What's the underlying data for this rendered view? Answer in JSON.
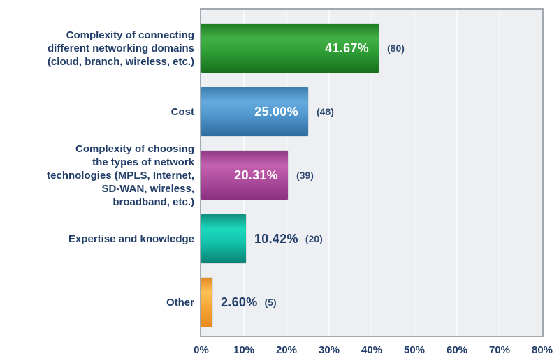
{
  "chart_data": {
    "type": "bar",
    "orientation": "horizontal",
    "title": "",
    "xlabel": "",
    "ylabel": "",
    "xlim": [
      0,
      80
    ],
    "x_ticks": [
      "0%",
      "10%",
      "20%",
      "30%",
      "40%",
      "50%",
      "60%",
      "70%",
      "80%"
    ],
    "grid": "vertical",
    "legend": "none",
    "categories": [
      "Complexity of connecting different networking domains (cloud, branch, wireless, etc.)",
      "Cost",
      "Complexity of choosing the types of network technologies (MPLS, Internet, SD-WAN, wireless, broadband, etc.)",
      "Expertise and knowledge",
      "Other"
    ],
    "category_lines": [
      [
        "Complexity of connecting",
        "different networking domains",
        "(cloud, branch, wireless, etc.)"
      ],
      [
        "Cost"
      ],
      [
        "Complexity of choosing",
        "the types of network",
        "technologies (MPLS, Internet,",
        "SD-WAN, wireless,",
        "broadband, etc.)"
      ],
      [
        "Expertise and knowledge"
      ],
      [
        "Other"
      ]
    ],
    "values": [
      41.67,
      25.0,
      20.31,
      10.42,
      2.6
    ],
    "value_labels": [
      "41.67%",
      "25.00%",
      "20.31%",
      "10.42%",
      "2.60%"
    ],
    "counts": [
      "(80)",
      "(48)",
      "(39)",
      "(20)",
      "(5)"
    ],
    "value_label_inside": [
      true,
      true,
      true,
      false,
      false
    ],
    "bar_colors": [
      {
        "name": "green",
        "edge": "#1e7c24",
        "light": "#42b046",
        "mid": "#2f9e35",
        "dark": "#186f1e"
      },
      {
        "name": "blue",
        "edge": "#3d7dae",
        "light": "#65abde",
        "mid": "#4f97cd",
        "dark": "#2f6b9e"
      },
      {
        "name": "magenta",
        "edge": "#8f3a86",
        "light": "#c462ae",
        "mid": "#b04e9e",
        "dark": "#8a3180"
      },
      {
        "name": "teal",
        "edge": "#128f7f",
        "light": "#1cd9be",
        "mid": "#13c2ab",
        "dark": "#0b8375"
      },
      {
        "name": "orange",
        "edge": "#e18a21",
        "light": "#ffc256",
        "mid": "#f7a838",
        "dark": "#e68a20"
      }
    ]
  },
  "colors": {
    "canvas_bg": "#ffffff",
    "text_navy": "#223e68",
    "plot_bg": "#edeff2",
    "plot_border": "#a2a9b1",
    "gridline": "#f8f9fb",
    "value_text_inside": "#ffffff"
  }
}
